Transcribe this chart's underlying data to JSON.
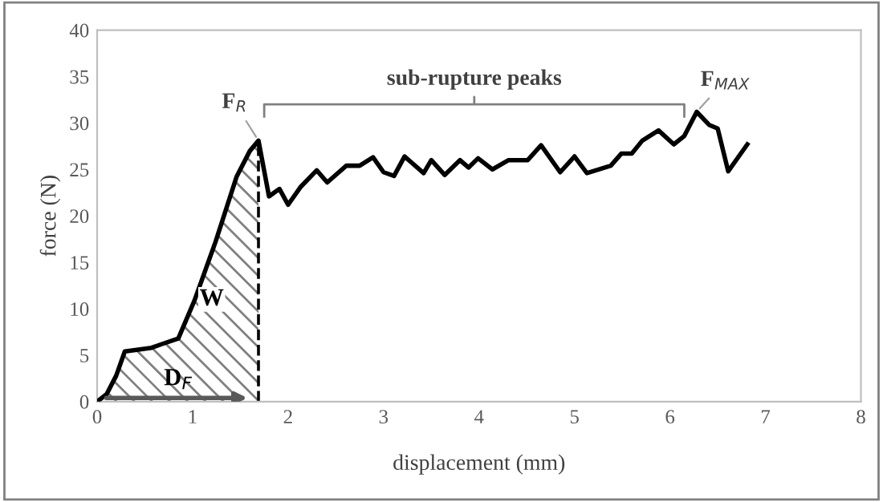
{
  "chart_data": {
    "type": "line",
    "xlabel": "displacement (mm)",
    "ylabel": "force (N)",
    "xlim": [
      0,
      8
    ],
    "ylim": [
      0,
      40
    ],
    "xticks": [
      0,
      1,
      2,
      3,
      4,
      5,
      6,
      7,
      8
    ],
    "yticks": [
      0,
      5,
      10,
      15,
      20,
      25,
      30,
      35,
      40
    ],
    "grid": false,
    "marker": "none",
    "line_style": "solid",
    "series": [
      {
        "type": "area",
        "color": "#808080",
        "x": [
          0,
          0.1,
          0.2,
          0.29,
          0.57,
          0.68,
          0.85,
          1.02,
          1.24,
          1.46,
          1.6,
          1.69
        ],
        "values": [
          0,
          0.8,
          2.8,
          5.4,
          5.8,
          6.2,
          6.8,
          10.9,
          17.2,
          24.2,
          27,
          28.1
        ]
      },
      {
        "color": "#000000",
        "x": [
          0,
          0.1,
          0.2,
          0.29,
          0.57,
          0.68,
          0.85,
          1.02,
          1.24,
          1.46,
          1.6,
          1.69,
          1.8,
          1.91,
          2.0,
          2.13,
          2.3,
          2.41,
          2.61,
          2.75,
          2.89,
          3.0,
          3.11,
          3.22,
          3.42,
          3.5,
          3.64,
          3.8,
          3.89,
          3.99,
          4.14,
          4.31,
          4.51,
          4.65,
          4.85,
          5.0,
          5.13,
          5.38,
          5.49,
          5.6,
          5.71,
          5.88,
          6.04,
          6.15,
          6.28,
          6.41,
          6.5,
          6.61,
          6.81
        ],
        "values": [
          0,
          0.8,
          2.8,
          5.4,
          5.8,
          6.2,
          6.8,
          10.9,
          17.2,
          24.2,
          27,
          28.1,
          22.1,
          22.9,
          21.2,
          23.1,
          24.9,
          23.6,
          25.4,
          25.4,
          26.3,
          24.7,
          24.3,
          26.4,
          24.6,
          26.0,
          24.4,
          26.0,
          25.2,
          26.2,
          25.0,
          26.0,
          26.0,
          27.6,
          24.7,
          26.4,
          24.6,
          25.4,
          26.7,
          26.7,
          28.1,
          29.2,
          27.7,
          28.6,
          31.2,
          29.8,
          29.4,
          24.8,
          27.7
        ]
      }
    ],
    "ref_lines": [
      {
        "axis": "x",
        "value": 1.69,
        "color": "#000000",
        "line_style": "dashed"
      }
    ],
    "annotations": [
      {
        "text": "F$_{R}$",
        "x": 1.69,
        "y": 28.1
      },
      {
        "text": "F$_{MAX}$",
        "x": 6.28,
        "y": 31.2
      },
      {
        "text": "W",
        "x": 1.2,
        "y": 11
      },
      {
        "text": "D$_{F}$",
        "x": 0.85,
        "y": 0
      },
      "sub-rupture peaks"
    ]
  }
}
